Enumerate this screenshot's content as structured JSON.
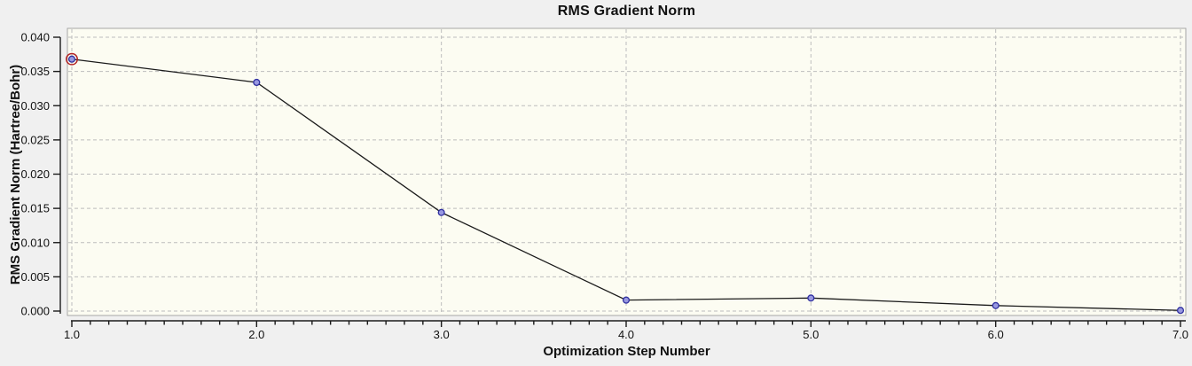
{
  "window": {
    "background_color": "#f0f0f0"
  },
  "chart_data": {
    "type": "line",
    "title": "RMS Gradient Norm",
    "xlabel": "Optimization Step Number",
    "ylabel": "RMS Gradient Norm (Hartree/Bohr)",
    "x": [
      1,
      2,
      3,
      4,
      5,
      6,
      7
    ],
    "series": [
      {
        "name": "RMS Gradient Norm",
        "values": [
          0.0368,
          0.0334,
          0.0144,
          0.0016,
          0.0019,
          0.0008,
          0.0001
        ]
      }
    ],
    "selected_point": {
      "step": 1,
      "value": 0.0368
    },
    "xlim": [
      1.0,
      7.0
    ],
    "ylim": [
      0.0,
      0.04
    ],
    "x_tick_labels": [
      "1.0",
      "2.0",
      "3.0",
      "4.0",
      "5.0",
      "6.0",
      "7.0"
    ],
    "x_minor_tick_step": 0.1,
    "y_tick_labels": [
      "0.000",
      "0.005",
      "0.010",
      "0.015",
      "0.020",
      "0.025",
      "0.030",
      "0.035",
      "0.040"
    ],
    "grid": "dashed-both-axes",
    "legend_position": "none",
    "colors": {
      "plot_background": "#fcfcf2",
      "outer_background": "#f0f0f0",
      "plot_border": "#a6a6a6",
      "gridline": "#bdbdbd",
      "line": "#1a1a1a",
      "marker_fill": "#9898e0",
      "marker_stroke": "#3030a0",
      "selected_ring": "#b22222",
      "axis": "#1a1a1a",
      "text": "#111111"
    }
  }
}
